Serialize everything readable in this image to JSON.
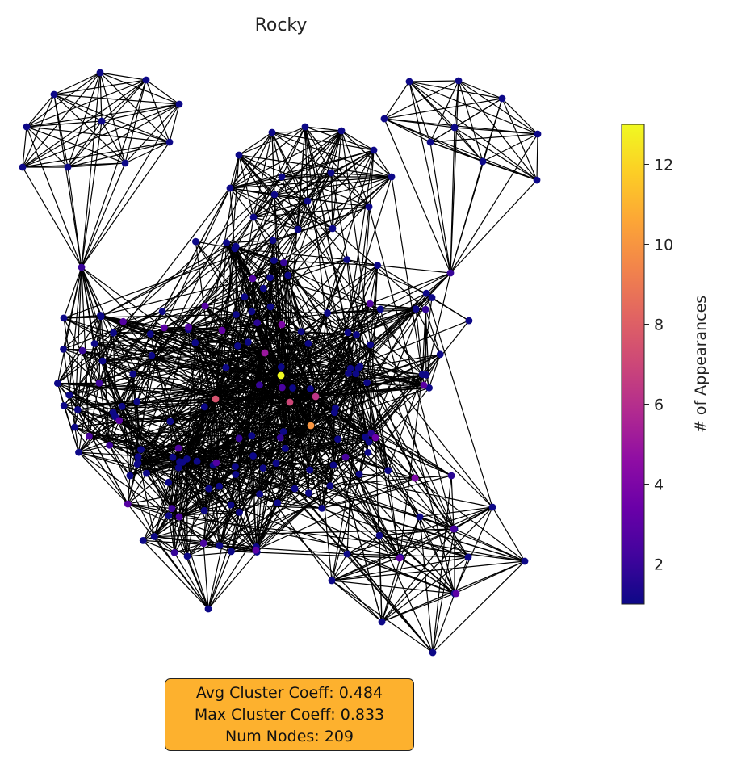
{
  "title": "Rocky",
  "colorbar": {
    "label": "# of Appearances",
    "ticks": [
      2,
      4,
      6,
      8,
      10,
      12
    ],
    "range": [
      1,
      13
    ],
    "colormap": "plasma"
  },
  "summary": {
    "avg_cluster": "Avg Cluster Coeff: 0.484",
    "max_cluster": "Max Cluster Coeff: 0.833",
    "num_nodes": "Num Nodes: 209"
  },
  "colors": {
    "edge": "#000000",
    "summary_bg": "#fdb12e",
    "node_low": "#0d0887",
    "node_high": "#f0f921"
  },
  "network": {
    "node_count": 209,
    "node_size_style": "small filled circles",
    "layout": "force-directed clusters"
  }
}
